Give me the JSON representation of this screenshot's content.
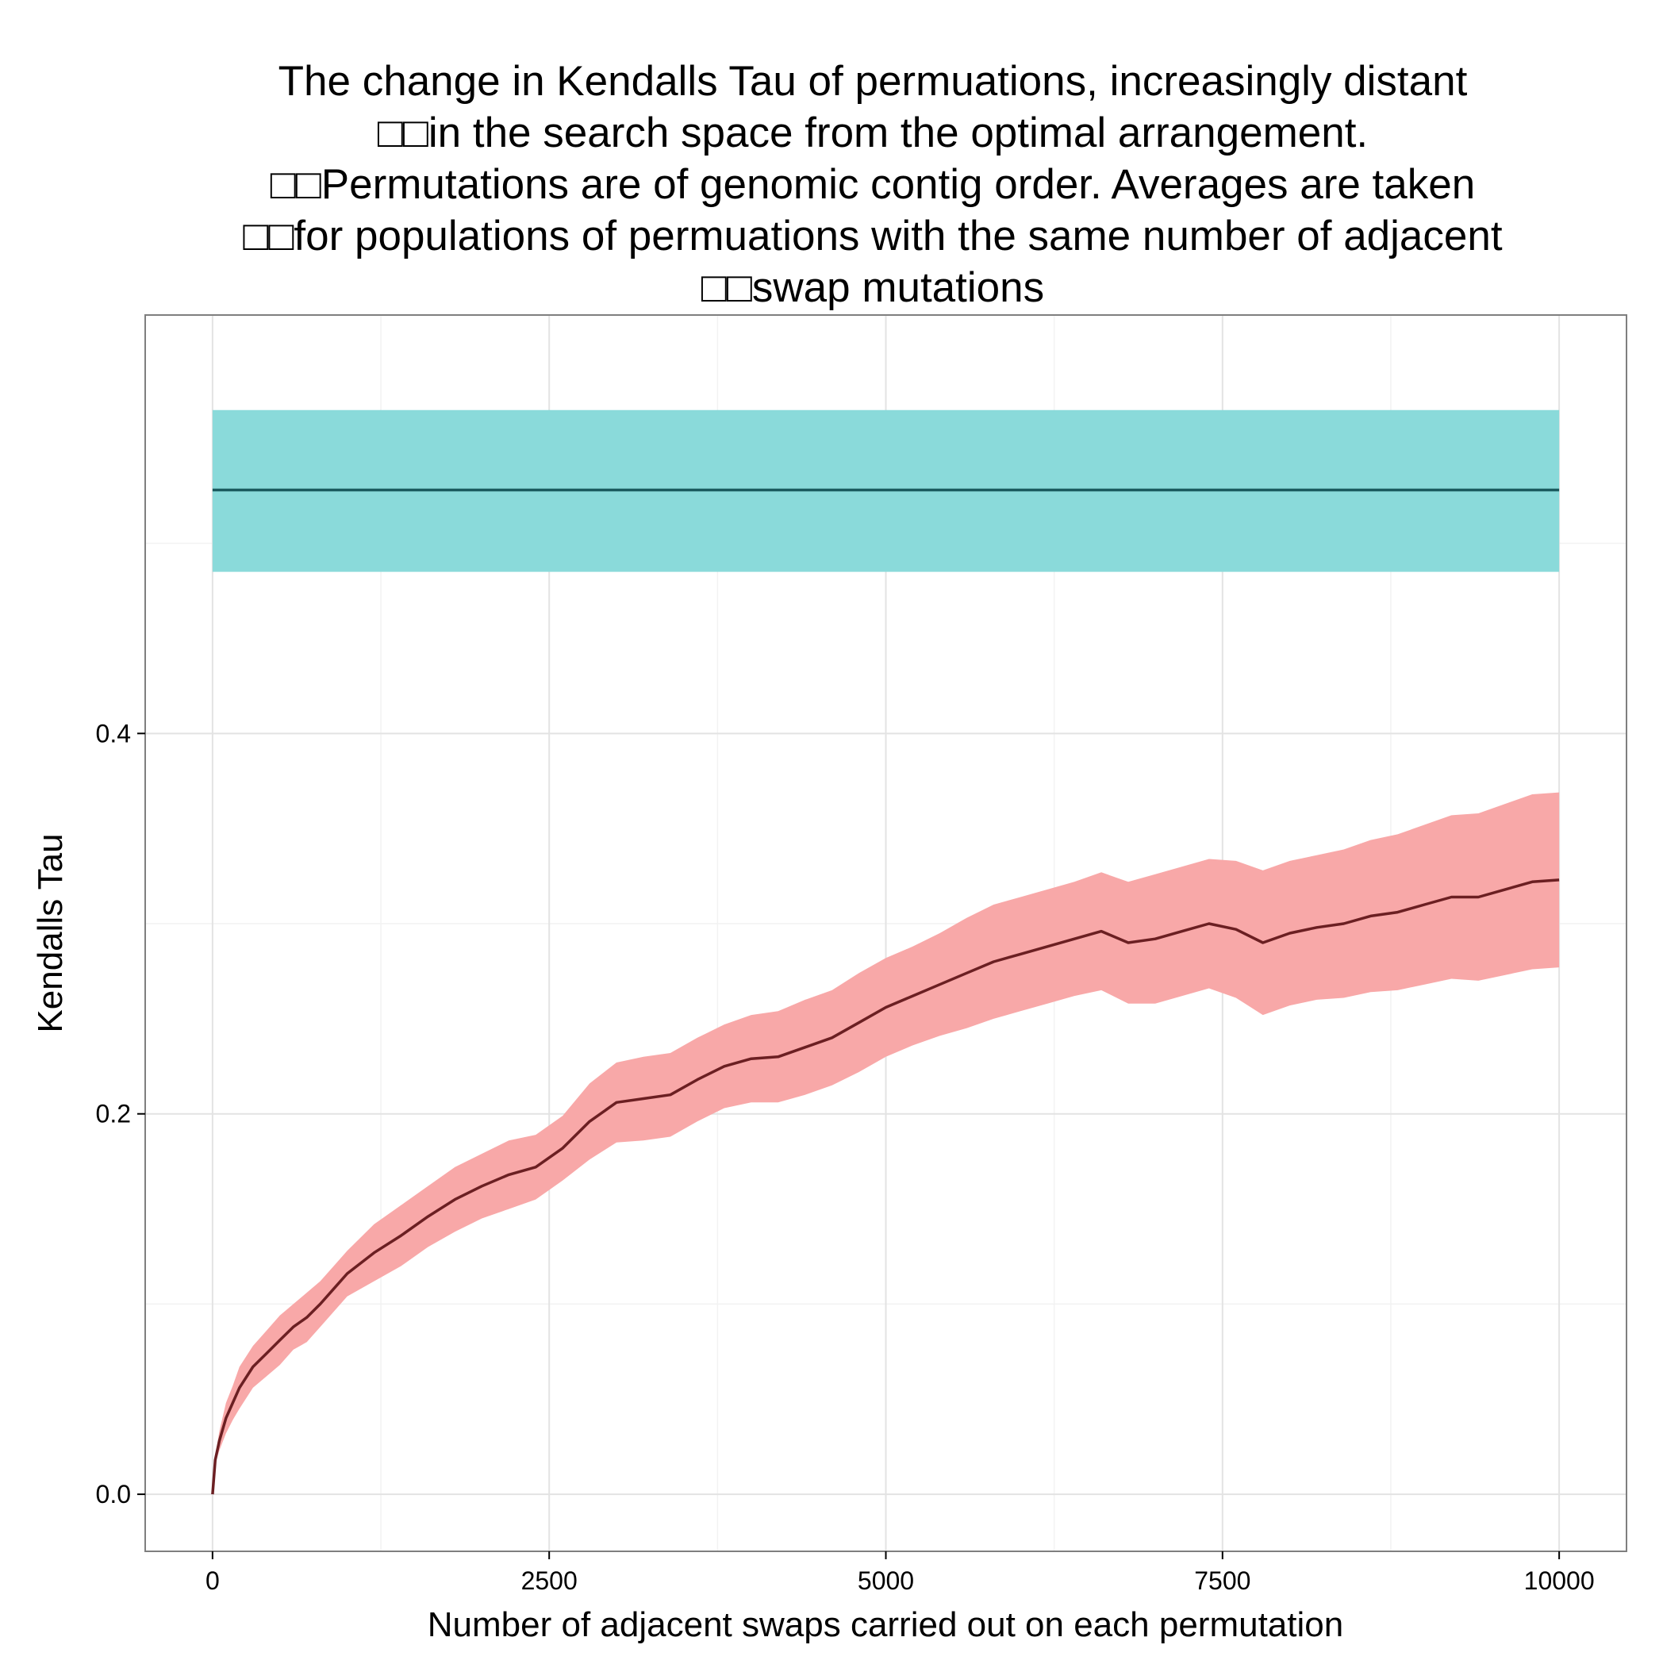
{
  "chart_data": {
    "type": "line",
    "title_lines": [
      "The change in Kendalls Tau of permuations, increasingly distant",
      "□□in the search space from the optimal arrangement.",
      "□□Permutations are of genomic contig order. Averages are taken",
      "□□for populations of permuations with the same number of adjacent",
      "□□swap mutations"
    ],
    "xlabel": "Number of adjacent swaps carried out on each permutation",
    "ylabel": "Kendalls Tau",
    "xlim": [
      -500,
      10500
    ],
    "ylim": [
      -0.03,
      0.62
    ],
    "x_ticks": [
      0,
      2500,
      5000,
      7500,
      10000
    ],
    "x_tick_labels": [
      "0",
      "2500",
      "5000",
      "7500",
      "10000"
    ],
    "y_ticks": [
      0.0,
      0.2,
      0.4
    ],
    "y_tick_labels": [
      "0.0",
      "0.2",
      "0.4"
    ],
    "grid": true,
    "series": [
      {
        "color": "#1A5A5E",
        "band_color": "#8ADADA",
        "x": [
          0,
          10000
        ],
        "y": [
          0.528,
          0.528
        ],
        "lower": [
          0.485,
          0.485
        ],
        "upper": [
          0.57,
          0.57
        ]
      },
      {
        "color": "#6B1F22",
        "band_color": "#F8A8A8",
        "x": [
          0,
          20,
          50,
          100,
          150,
          200,
          300,
          400,
          500,
          600,
          700,
          800,
          900,
          1000,
          1200,
          1400,
          1600,
          1800,
          2000,
          2200,
          2400,
          2600,
          2800,
          3000,
          3200,
          3400,
          3600,
          3800,
          4000,
          4200,
          4400,
          4600,
          4800,
          5000,
          5200,
          5400,
          5600,
          5800,
          6000,
          6200,
          6400,
          6600,
          6800,
          7000,
          7200,
          7400,
          7600,
          7800,
          8000,
          8200,
          8400,
          8600,
          8800,
          9000,
          9200,
          9400,
          9600,
          9800,
          10000
        ],
        "y": [
          0.0,
          0.018,
          0.028,
          0.04,
          0.048,
          0.056,
          0.067,
          0.074,
          0.081,
          0.088,
          0.093,
          0.1,
          0.108,
          0.116,
          0.127,
          0.136,
          0.146,
          0.155,
          0.162,
          0.168,
          0.172,
          0.182,
          0.196,
          0.206,
          0.208,
          0.21,
          0.218,
          0.225,
          0.229,
          0.23,
          0.235,
          0.24,
          0.248,
          0.256,
          0.262,
          0.268,
          0.274,
          0.28,
          0.284,
          0.288,
          0.292,
          0.296,
          0.29,
          0.292,
          0.296,
          0.3,
          0.297,
          0.29,
          0.295,
          0.298,
          0.3,
          0.304,
          0.306,
          0.31,
          0.314,
          0.314,
          0.318,
          0.322,
          0.323
        ],
        "lower": [
          0.0,
          0.016,
          0.023,
          0.032,
          0.039,
          0.045,
          0.056,
          0.062,
          0.068,
          0.076,
          0.08,
          0.088,
          0.096,
          0.104,
          0.112,
          0.12,
          0.13,
          0.138,
          0.145,
          0.15,
          0.155,
          0.165,
          0.176,
          0.185,
          0.186,
          0.188,
          0.196,
          0.203,
          0.206,
          0.206,
          0.21,
          0.215,
          0.222,
          0.23,
          0.236,
          0.241,
          0.245,
          0.25,
          0.254,
          0.258,
          0.262,
          0.265,
          0.258,
          0.258,
          0.262,
          0.266,
          0.261,
          0.252,
          0.257,
          0.26,
          0.261,
          0.264,
          0.265,
          0.268,
          0.271,
          0.27,
          0.273,
          0.276,
          0.277
        ],
        "upper": [
          0.0,
          0.02,
          0.033,
          0.048,
          0.057,
          0.067,
          0.078,
          0.086,
          0.094,
          0.1,
          0.106,
          0.112,
          0.12,
          0.128,
          0.142,
          0.152,
          0.162,
          0.172,
          0.179,
          0.186,
          0.189,
          0.199,
          0.216,
          0.227,
          0.23,
          0.232,
          0.24,
          0.247,
          0.252,
          0.254,
          0.26,
          0.265,
          0.274,
          0.282,
          0.288,
          0.295,
          0.303,
          0.31,
          0.314,
          0.318,
          0.322,
          0.327,
          0.322,
          0.326,
          0.33,
          0.334,
          0.333,
          0.328,
          0.333,
          0.336,
          0.339,
          0.344,
          0.347,
          0.352,
          0.357,
          0.358,
          0.363,
          0.368,
          0.369
        ]
      }
    ]
  }
}
